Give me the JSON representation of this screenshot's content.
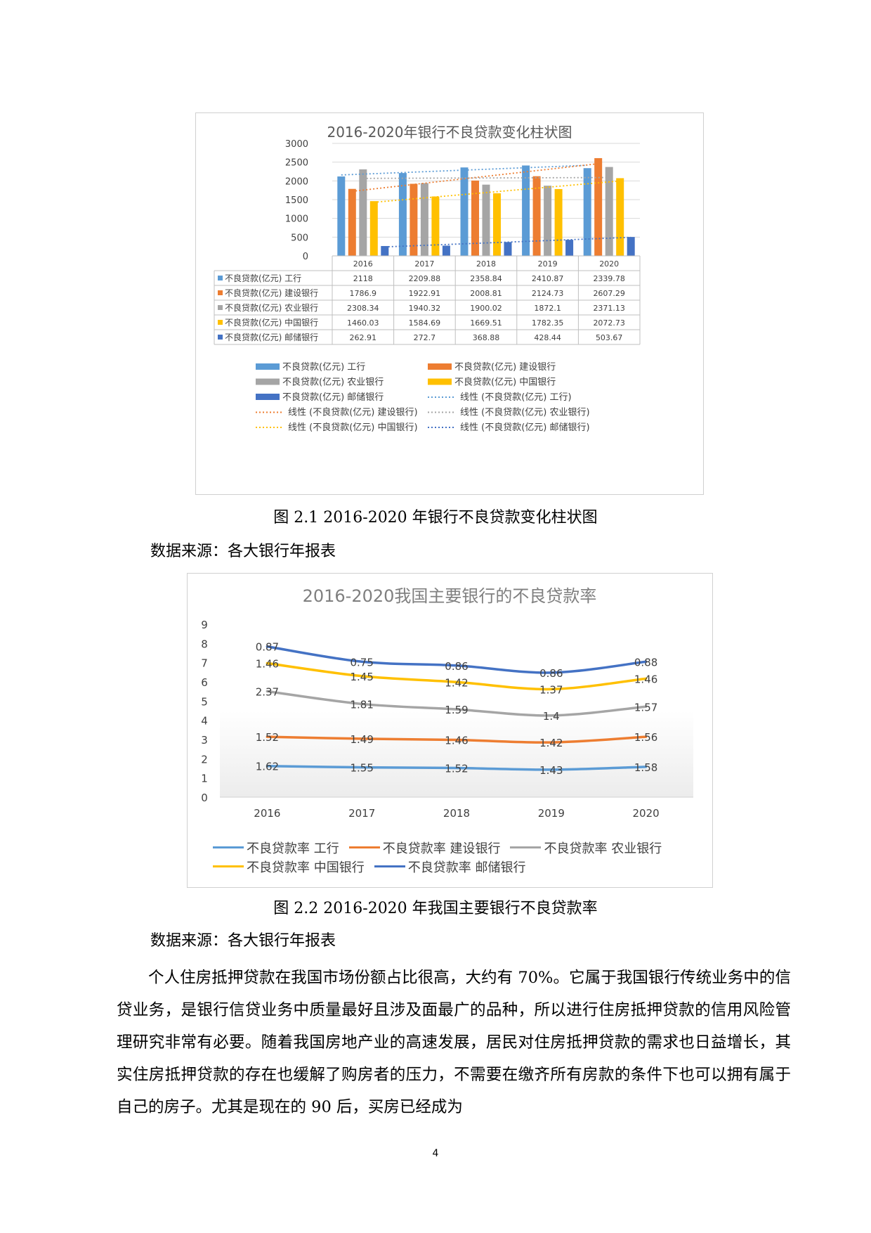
{
  "figures": [
    {
      "caption": "图 2.1 2016-2020 年银行不良贷款变化柱状图",
      "source": "数据来源：各大银行年报表"
    },
    {
      "caption": "图 2.2 2016-2020 年我国主要银行不良贷款率",
      "source": "数据来源：各大银行年报表"
    }
  ],
  "paragraph": "个人住房抵押贷款在我国市场份额占比很高，大约有 70%。它属于我国银行传统业务中的信贷业务，是银行信贷业务中质量最好且涉及面最广的品种，所以进行住房抵押贷款的信用风险管理研究非常有必要。随着我国房地产业的高速发展，居民对住房抵押贷款的需求也日益增长，其实住房抵押贷款的存在也缓解了购房者的压力，不需要在缴齐所有房款的条件下也可以拥有属于自己的房子。尤其是现在的 90 后，买房已经成为",
  "page_number": "4",
  "chart_data": [
    {
      "type": "bar",
      "title": "2016-2020年银行不良贷款变化柱状图",
      "categories": [
        "2016",
        "2017",
        "2018",
        "2019",
        "2020"
      ],
      "ylim": [
        0,
        3000
      ],
      "yticks": [
        0,
        500,
        1000,
        1500,
        2000,
        2500,
        3000
      ],
      "grid": true,
      "trendlines": "linear",
      "legend": "bottom",
      "series": [
        {
          "name": "不良贷款(亿元) 工行",
          "color": "#5b9bd5",
          "values": [
            2118,
            2209.88,
            2358.84,
            2410.87,
            2339.78
          ],
          "labels": [
            "2118",
            "2209.88",
            "2358.84",
            "2410.87",
            "2339.78"
          ]
        },
        {
          "name": "不良贷款(亿元) 建设银行",
          "color": "#ed7d31",
          "values": [
            1786.9,
            1922.91,
            2008.81,
            2124.73,
            2607.29
          ],
          "labels": [
            "1786.9",
            "1922.91",
            "2008.81",
            "2124.73",
            "2607.29"
          ]
        },
        {
          "name": "不良贷款(亿元) 农业银行",
          "color": "#a5a5a5",
          "values": [
            2308.34,
            1940.32,
            1900.02,
            1872.1,
            2371.13
          ],
          "labels": [
            "2308.34",
            "1940.32",
            "1900.02",
            "1872.1",
            "2371.13"
          ]
        },
        {
          "name": "不良贷款(亿元) 中国银行",
          "color": "#ffc000",
          "values": [
            1460.03,
            1584.69,
            1669.51,
            1782.35,
            2072.73
          ],
          "labels": [
            "1460.03",
            "1584.69",
            "1669.51",
            "1782.35",
            "2072.73"
          ]
        },
        {
          "name": "不良贷款(亿元) 邮储银行",
          "color": "#4472c4",
          "values": [
            262.91,
            272.7,
            368.88,
            428.44,
            503.67
          ],
          "labels": [
            "262.91",
            "272.7",
            "368.88",
            "428.44",
            "503.67"
          ]
        }
      ],
      "trend_legend": [
        {
          "name": "线性 (不良贷款(亿元) 工行)",
          "color": "#5b9bd5"
        },
        {
          "name": "线性 (不良贷款(亿元) 建设银行)",
          "color": "#ed7d31"
        },
        {
          "name": "线性 (不良贷款(亿元) 农业银行)",
          "color": "#a5a5a5"
        },
        {
          "name": "线性 (不良贷款(亿元) 中国银行)",
          "color": "#ffc000"
        },
        {
          "name": "线性 (不良贷款(亿元) 邮储银行)",
          "color": "#4472c4"
        }
      ]
    },
    {
      "type": "line",
      "title": "2016-2020我国主要银行的不良贷款率",
      "stacked": true,
      "categories": [
        "2016",
        "2017",
        "2018",
        "2019",
        "2020"
      ],
      "ylim": [
        0,
        9
      ],
      "yticks": [
        "0",
        "1",
        "2",
        "3",
        "4",
        "5",
        "6",
        "7",
        "8",
        "9"
      ],
      "legend": "bottom",
      "series": [
        {
          "name": "不良贷款率 工行",
          "color": "#5b9bd5",
          "values": [
            1.62,
            1.55,
            1.52,
            1.43,
            1.58
          ],
          "labels": [
            "1.62",
            "1.55",
            "1.52",
            "1.43",
            "1.58"
          ]
        },
        {
          "name": "不良贷款率 建设银行",
          "color": "#ed7d31",
          "values": [
            1.52,
            1.49,
            1.46,
            1.42,
            1.56
          ],
          "labels": [
            "1.52",
            "1.49",
            "1.46",
            "1.42",
            "1.56"
          ]
        },
        {
          "name": "不良贷款率 农业银行",
          "color": "#a5a5a5",
          "values": [
            2.37,
            1.81,
            1.59,
            1.4,
            1.57
          ],
          "labels": [
            "2.37",
            "1.81",
            "1.59",
            "1.4",
            "1.57"
          ]
        },
        {
          "name": "不良贷款率 中国银行",
          "color": "#ffc000",
          "values": [
            1.46,
            1.45,
            1.42,
            1.37,
            1.46
          ],
          "labels": [
            "1.46",
            "1.45",
            "1.42",
            "1.37",
            "1.46"
          ]
        },
        {
          "name": "不良贷款率 邮储银行",
          "color": "#4472c4",
          "values": [
            0.87,
            0.75,
            0.86,
            0.86,
            0.88
          ],
          "labels": [
            "0.87",
            "0.75",
            "0.86",
            "0.86",
            "0.88"
          ]
        }
      ]
    }
  ]
}
